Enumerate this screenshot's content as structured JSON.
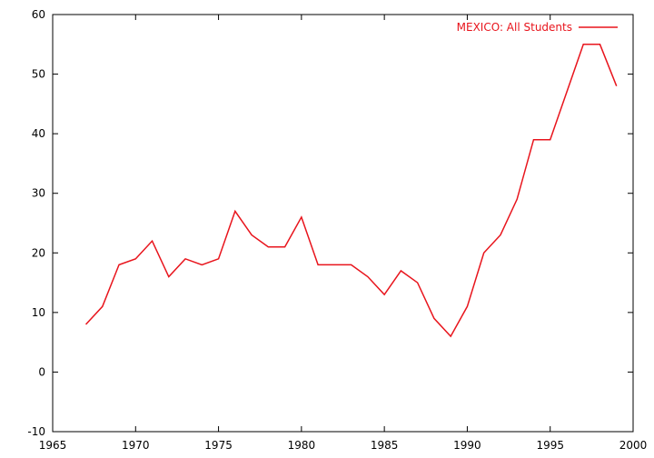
{
  "chart_data": {
    "type": "line",
    "title": "",
    "xlabel": "",
    "ylabel": "",
    "xlim": [
      1965,
      2000
    ],
    "ylim": [
      -10,
      60
    ],
    "xticks": [
      1965,
      1970,
      1975,
      1980,
      1985,
      1990,
      1995,
      2000
    ],
    "yticks": [
      -10,
      0,
      10,
      20,
      30,
      40,
      50,
      60
    ],
    "grid": false,
    "legend_position": "top-right",
    "series": [
      {
        "name": "MEXICO: All Students",
        "color": "#e8141c",
        "x": [
          1967,
          1968,
          1969,
          1970,
          1971,
          1972,
          1973,
          1974,
          1975,
          1976,
          1977,
          1978,
          1979,
          1980,
          1981,
          1982,
          1983,
          1984,
          1985,
          1986,
          1987,
          1988,
          1989,
          1990,
          1991,
          1992,
          1993,
          1994,
          1995,
          1996,
          1997,
          1998,
          1999
        ],
        "y": [
          8,
          11,
          18,
          19,
          22,
          16,
          19,
          18,
          19,
          27,
          23,
          21,
          21,
          26,
          18,
          18,
          18,
          16,
          13,
          17,
          15,
          9,
          6,
          11,
          20,
          23,
          29,
          39,
          39,
          47,
          55,
          55,
          48
        ]
      }
    ]
  }
}
